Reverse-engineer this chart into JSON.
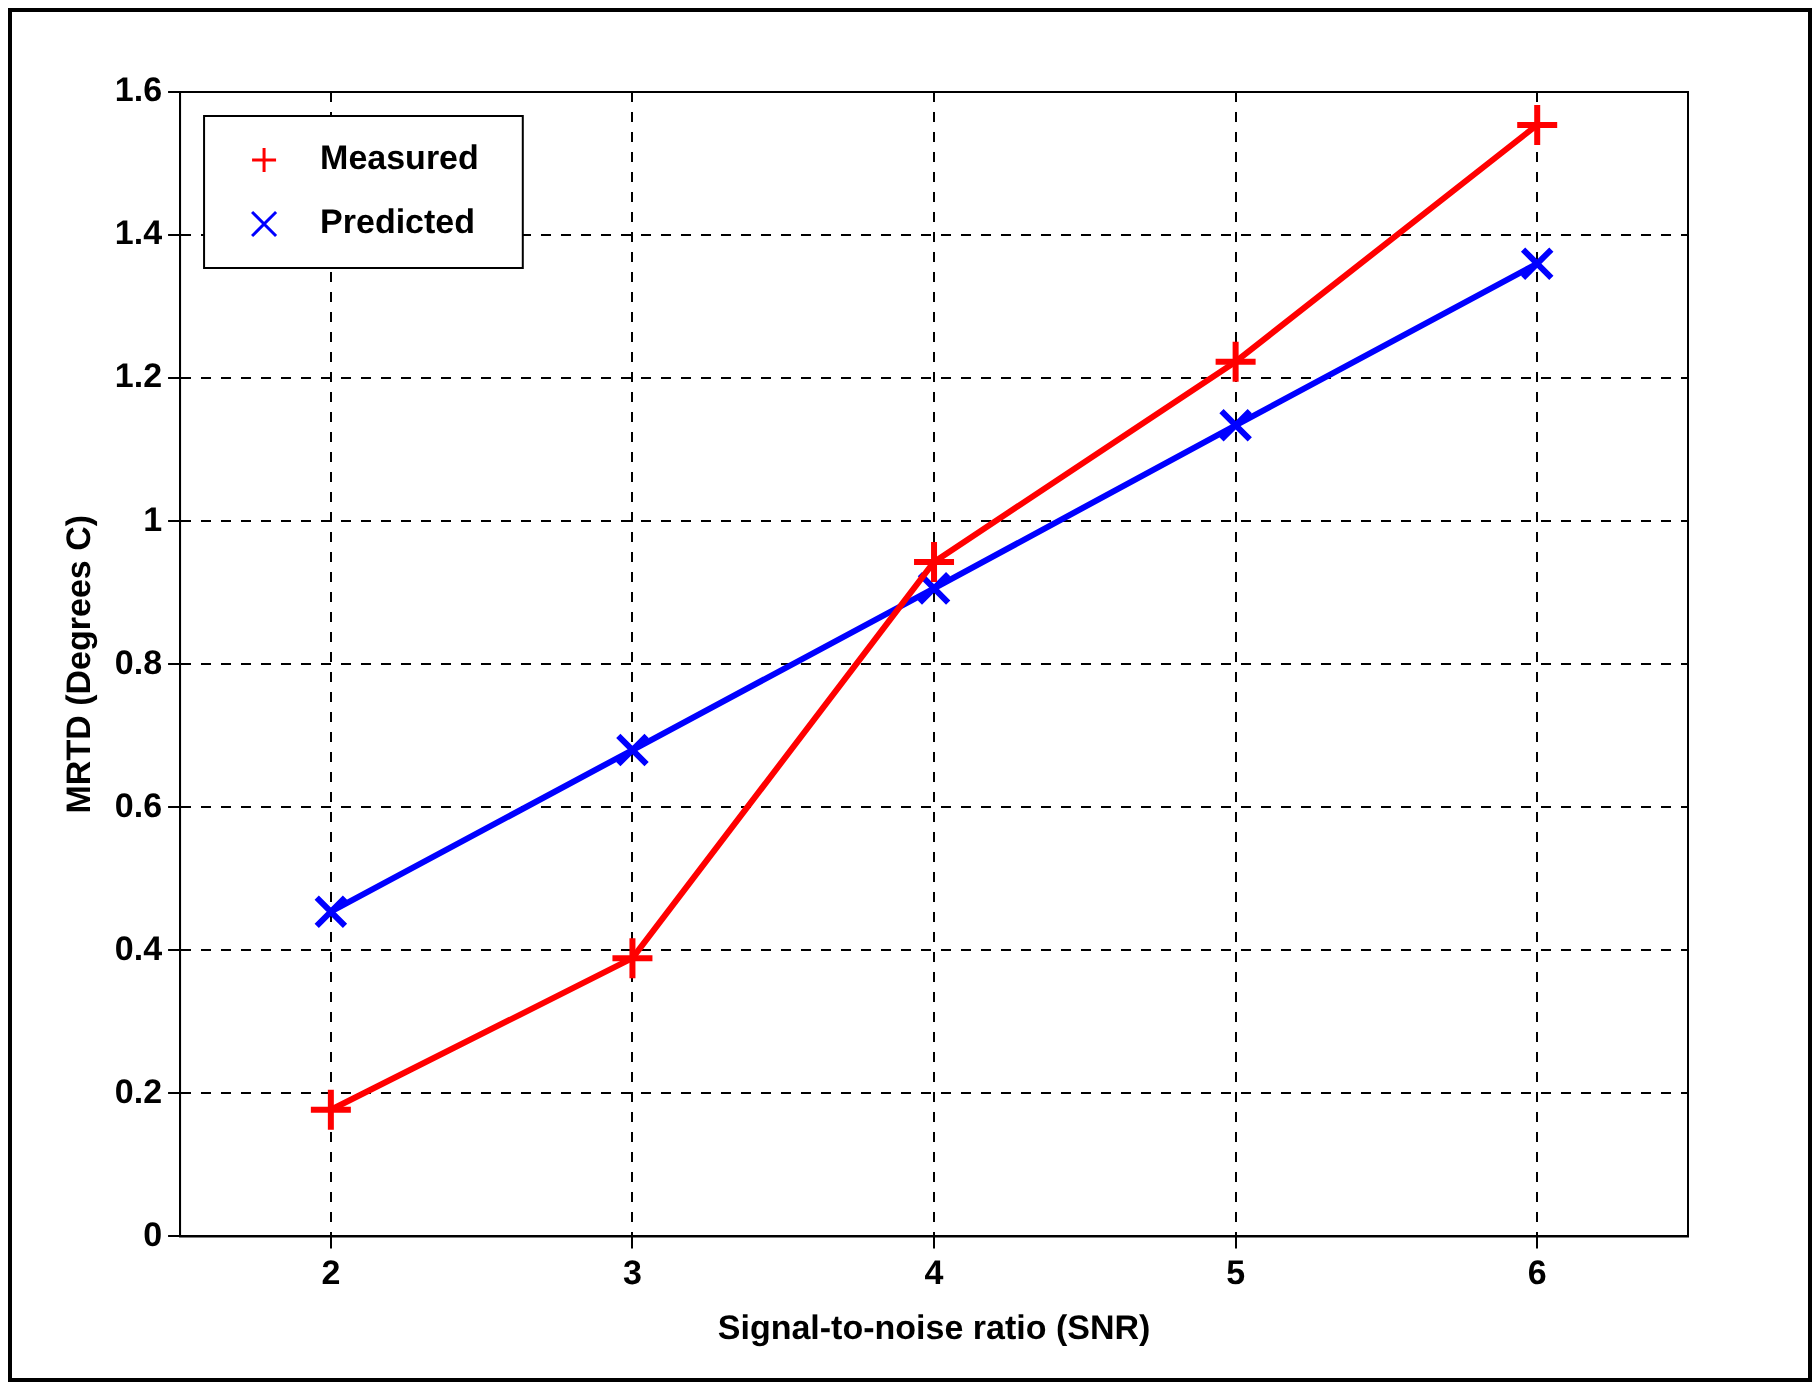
{
  "chart_data": {
    "type": "line",
    "xlabel": "Signal-to-noise ratio (SNR)",
    "ylabel": "MRTD (Degrees C)",
    "x": [
      2,
      3,
      4,
      5,
      6
    ],
    "series": [
      {
        "name": "Measured",
        "color": "#ff0000",
        "marker": "cross",
        "values": [
          0.177,
          0.389,
          0.943,
          1.223,
          1.554
        ]
      },
      {
        "name": "Predicted",
        "color": "#0000ff",
        "marker": "x",
        "values": [
          0.454,
          0.68,
          0.906,
          1.134,
          1.36
        ]
      }
    ],
    "xlim": [
      1.5,
      6.5
    ],
    "xticks": [
      2,
      3,
      4,
      5,
      6
    ],
    "ylim": [
      0,
      1.6
    ],
    "yticks": [
      0,
      0.2,
      0.4,
      0.6,
      0.8,
      1,
      1.2,
      1.4,
      1.6
    ],
    "grid": true,
    "legend": "top left",
    "line_style": "solid"
  }
}
